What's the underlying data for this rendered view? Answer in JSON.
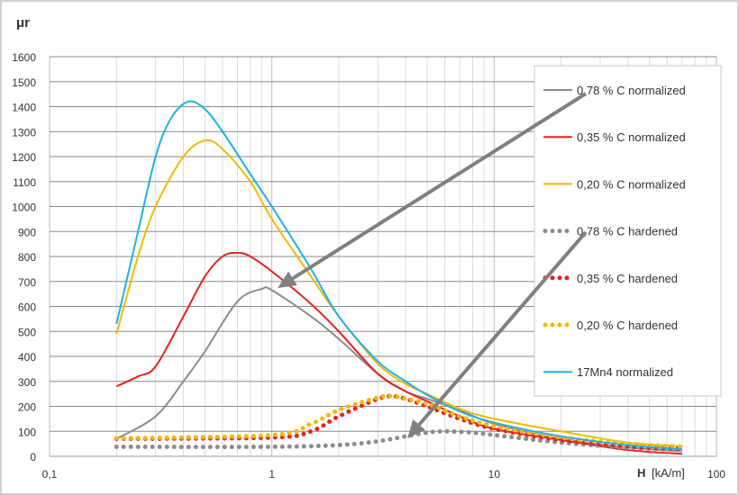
{
  "chart_data": {
    "type": "line",
    "ylabel": "μr",
    "xlabel": "H [kA/m]",
    "xlabel_bold": "H",
    "xlabel_unit": "[kA/m]",
    "xscale": "log",
    "xlim": [
      0.1,
      100
    ],
    "ylim": [
      0,
      1600
    ],
    "x_ticks": [
      "0,1",
      "1",
      "10",
      "100"
    ],
    "y_ticks": [
      "0",
      "100",
      "200",
      "300",
      "400",
      "500",
      "600",
      "700",
      "800",
      "900",
      "1000",
      "1100",
      "1200",
      "1300",
      "1400",
      "1500",
      "1600"
    ],
    "grid": true,
    "legend_position": "right",
    "series": [
      {
        "name": "0,78 % C normalized",
        "color": "#8c8c8c",
        "style": "solid",
        "x": [
          0.2,
          0.3,
          0.4,
          0.5,
          0.7,
          0.9,
          1,
          1.5,
          2,
          3,
          4,
          5,
          7,
          10,
          20,
          40,
          70
        ],
        "y": [
          70,
          160,
          300,
          420,
          620,
          670,
          665,
          560,
          470,
          330,
          260,
          230,
          185,
          130,
          70,
          35,
          20
        ]
      },
      {
        "name": "0,35 % C normalized",
        "color": "#e8221e",
        "style": "solid",
        "x": [
          0.2,
          0.25,
          0.3,
          0.4,
          0.5,
          0.6,
          0.7,
          0.8,
          1,
          1.5,
          2,
          3,
          4,
          5,
          7,
          10,
          20,
          40,
          70
        ],
        "y": [
          280,
          320,
          360,
          560,
          720,
          800,
          815,
          800,
          740,
          610,
          500,
          330,
          260,
          220,
          160,
          110,
          65,
          25,
          10
        ]
      },
      {
        "name": "0,20 % C normalized",
        "color": "#f5b800",
        "style": "solid",
        "x": [
          0.2,
          0.25,
          0.3,
          0.4,
          0.5,
          0.6,
          0.8,
          1,
          1.5,
          2,
          3,
          4,
          5,
          7,
          10,
          20,
          40,
          70
        ],
        "y": [
          490,
          800,
          1000,
          1200,
          1265,
          1230,
          1100,
          950,
          720,
          560,
          370,
          290,
          250,
          190,
          150,
          100,
          55,
          40
        ]
      },
      {
        "name": "0,78 % C hardened",
        "color": "#8c8c8c",
        "style": "dotted",
        "x": [
          0.2,
          1,
          2,
          3,
          4,
          5,
          6,
          8,
          10,
          20,
          40,
          70
        ],
        "y": [
          38,
          38,
          45,
          60,
          80,
          95,
          100,
          95,
          85,
          55,
          35,
          25
        ]
      },
      {
        "name": "0,35 % C hardened",
        "color": "#e8221e",
        "style": "dotted",
        "x": [
          0.2,
          1,
          1.5,
          2,
          3,
          3.5,
          4,
          5,
          7,
          10,
          20,
          40,
          70
        ],
        "y": [
          70,
          75,
          100,
          160,
          230,
          240,
          230,
          200,
          150,
          110,
          65,
          40,
          30
        ]
      },
      {
        "name": "0,20 % C hardened",
        "color": "#f5b800",
        "style": "dotted",
        "x": [
          0.2,
          1,
          1.5,
          2,
          3,
          3.5,
          4,
          5,
          7,
          10,
          20,
          40,
          70
        ],
        "y": [
          72,
          85,
          130,
          185,
          235,
          240,
          230,
          210,
          160,
          120,
          75,
          50,
          38
        ]
      },
      {
        "name": "17Mn4 normalized",
        "color": "#1fb0e6",
        "style": "solid",
        "x": [
          0.2,
          0.25,
          0.3,
          0.35,
          0.42,
          0.5,
          0.6,
          0.8,
          1,
          1.5,
          2,
          3,
          4,
          5,
          7,
          10,
          20,
          40,
          70
        ],
        "y": [
          530,
          900,
          1200,
          1350,
          1420,
          1390,
          1300,
          1130,
          1000,
          750,
          560,
          380,
          300,
          245,
          180,
          135,
          80,
          45,
          28
        ]
      }
    ],
    "annotations": [
      {
        "type": "arrow",
        "from_legend": "0,78 % C normalized",
        "to_series": "0,78 % C normalized"
      },
      {
        "type": "arrow",
        "from_legend": "0,78 % C hardened",
        "to_series": "0,78 % C hardened"
      }
    ]
  }
}
